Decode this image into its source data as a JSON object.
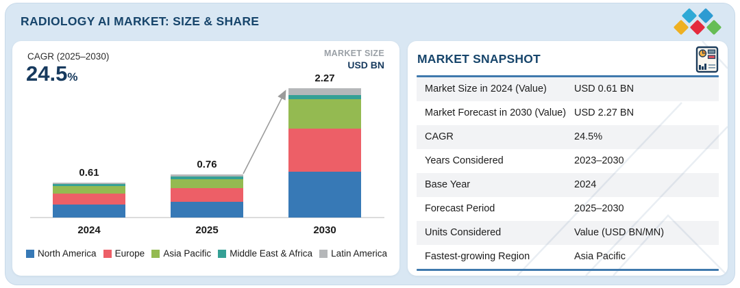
{
  "page": {
    "title": "RADIOLOGY AI MARKET: SIZE & SHARE"
  },
  "chart_panel": {
    "cagr_label": "CAGR (2025–2030)",
    "cagr_value": "24.5",
    "cagr_unit": "%",
    "size_note_line1": "MARKET SIZE",
    "size_note_line2": "USD BN"
  },
  "chart_data": {
    "type": "bar",
    "stacked": true,
    "title": "Radiology AI Market Size",
    "unit": "USD BN",
    "categories": [
      "2024",
      "2025",
      "2030"
    ],
    "series": [
      {
        "name": "North America",
        "color": "#3779b6",
        "values": [
          0.225,
          0.275,
          0.81
        ]
      },
      {
        "name": "Europe",
        "color": "#ed5f67",
        "values": [
          0.19,
          0.24,
          0.75
        ]
      },
      {
        "name": "Asia Pacific",
        "color": "#94ba51",
        "values": [
          0.14,
          0.16,
          0.52
        ]
      },
      {
        "name": "Middle East & Africa",
        "color": "#35a095",
        "values": [
          0.03,
          0.045,
          0.07
        ]
      },
      {
        "name": "Latin America",
        "color": "#b5b7b9",
        "values": [
          0.025,
          0.04,
          0.12
        ]
      }
    ],
    "totals": [
      0.61,
      0.76,
      2.27
    ],
    "total_labels": [
      "0.61",
      "0.76",
      "2.27"
    ],
    "legend_position": "bottom",
    "grid": false,
    "annotations": [
      "growth arrow from 2025 bar to 2030 bar"
    ]
  },
  "snapshot": {
    "title": "MARKET SNAPSHOT",
    "rows": [
      {
        "label": "Market Size in 2024 (Value)",
        "value": "USD 0.61 BN"
      },
      {
        "label": "Market Forecast in 2030 (Value)",
        "value": "USD 2.27 BN"
      },
      {
        "label": "CAGR",
        "value": "24.5%"
      },
      {
        "label": "Years Considered",
        "value": "2023–2030"
      },
      {
        "label": "Base Year",
        "value": "2024"
      },
      {
        "label": "Forecast Period",
        "value": "2025–2030"
      },
      {
        "label": "Units Considered",
        "value": "Value (USD BN/MN)"
      },
      {
        "label": "Fastest-growing Region",
        "value": "Asia Pacific"
      }
    ]
  },
  "colors": {
    "background": "#d9e7f3",
    "accent_navy": "#17456b",
    "rule_blue": "#3f79ad",
    "logo": {
      "cyan": "#2ea9d6",
      "blue": "#2d9bd2",
      "yellow": "#eeb021",
      "red": "#e42a3d",
      "green": "#66bd55"
    }
  }
}
